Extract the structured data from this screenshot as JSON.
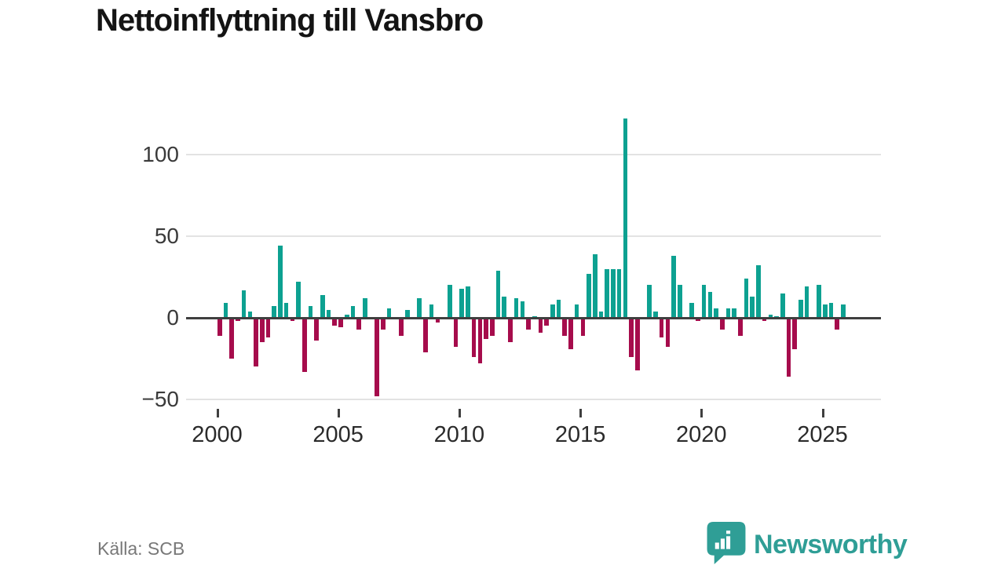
{
  "title": "Nettoinflyttning till Vansbro",
  "source": "Källa: SCB",
  "logo": {
    "wordmark": "Newsworthy",
    "icon": "bar-chart-speech-bubble"
  },
  "colors": {
    "positive_bar": "#0da191",
    "negative_bar": "#a60c4c",
    "axis": "#3f3f3f",
    "grid": "#e3e3e3",
    "logo_teal": "#2f9e96"
  },
  "chart_data": {
    "type": "bar",
    "title": "Nettoinflyttning till Vansbro",
    "xlabel": "",
    "ylabel": "",
    "frequency": "quarterly",
    "grid": "horizontal",
    "legend": "none",
    "ylim": [
      -50,
      125
    ],
    "yticks": [
      100,
      50,
      0,
      -50
    ],
    "ytick_labels": [
      "100",
      "50",
      "0",
      "−50"
    ],
    "xticks": [
      2000,
      2005,
      2010,
      2015,
      2020,
      2025
    ],
    "categories": [
      "2000 Q1",
      "2000 Q2",
      "2000 Q3",
      "2000 Q4",
      "2001 Q1",
      "2001 Q2",
      "2001 Q3",
      "2001 Q4",
      "2002 Q1",
      "2002 Q2",
      "2002 Q3",
      "2002 Q4",
      "2003 Q1",
      "2003 Q2",
      "2003 Q3",
      "2003 Q4",
      "2004 Q1",
      "2004 Q2",
      "2004 Q3",
      "2004 Q4",
      "2005 Q1",
      "2005 Q2",
      "2005 Q3",
      "2005 Q4",
      "2006 Q1",
      "2006 Q2",
      "2006 Q3",
      "2006 Q4",
      "2007 Q1",
      "2007 Q2",
      "2007 Q3",
      "2007 Q4",
      "2008 Q1",
      "2008 Q2",
      "2008 Q3",
      "2008 Q4",
      "2009 Q1",
      "2009 Q2",
      "2009 Q3",
      "2009 Q4",
      "2010 Q1",
      "2010 Q2",
      "2010 Q3",
      "2010 Q4",
      "2011 Q1",
      "2011 Q2",
      "2011 Q3",
      "2011 Q4",
      "2012 Q1",
      "2012 Q2",
      "2012 Q3",
      "2012 Q4",
      "2013 Q1",
      "2013 Q2",
      "2013 Q3",
      "2013 Q4",
      "2014 Q1",
      "2014 Q2",
      "2014 Q3",
      "2014 Q4",
      "2015 Q1",
      "2015 Q2",
      "2015 Q3",
      "2015 Q4",
      "2016 Q1",
      "2016 Q2",
      "2016 Q3",
      "2016 Q4",
      "2017 Q1",
      "2017 Q2",
      "2017 Q3",
      "2017 Q4",
      "2018 Q1",
      "2018 Q2",
      "2018 Q3",
      "2018 Q4",
      "2019 Q1",
      "2019 Q2",
      "2019 Q3",
      "2019 Q4",
      "2020 Q1",
      "2020 Q2",
      "2020 Q3",
      "2020 Q4",
      "2021 Q1",
      "2021 Q2",
      "2021 Q3",
      "2021 Q4",
      "2022 Q1",
      "2022 Q2",
      "2022 Q3",
      "2022 Q4",
      "2023 Q1",
      "2023 Q2",
      "2023 Q3",
      "2023 Q4",
      "2024 Q1",
      "2024 Q2",
      "2024 Q3",
      "2024 Q4",
      "2025 Q1",
      "2025 Q2",
      "2025 Q3",
      "2025 Q4"
    ],
    "values": [
      -11,
      9,
      -25,
      -2,
      17,
      4,
      -30,
      -15,
      -12,
      7,
      44,
      9,
      -2,
      22,
      -33,
      7,
      -14,
      14,
      5,
      -5,
      -6,
      2,
      7,
      -7,
      12,
      0,
      -48,
      -7,
      6,
      0,
      -11,
      5,
      0,
      12,
      -21,
      8,
      -3,
      0,
      20,
      -18,
      18,
      19,
      -24,
      -28,
      -13,
      -11,
      29,
      13,
      -15,
      12,
      10,
      -7,
      1,
      -9,
      -5,
      8,
      11,
      -11,
      -19,
      8,
      -11,
      27,
      39,
      4,
      30,
      30,
      30,
      122,
      -24,
      -32,
      0,
      20,
      4,
      -12,
      -18,
      38,
      20,
      0,
      9,
      -2,
      20,
      16,
      6,
      -7,
      6,
      6,
      -11,
      24,
      13,
      32,
      -2,
      2,
      1,
      15,
      -36,
      -19,
      11,
      19,
      0,
      20,
      8,
      9,
      -7,
      8
    ]
  }
}
